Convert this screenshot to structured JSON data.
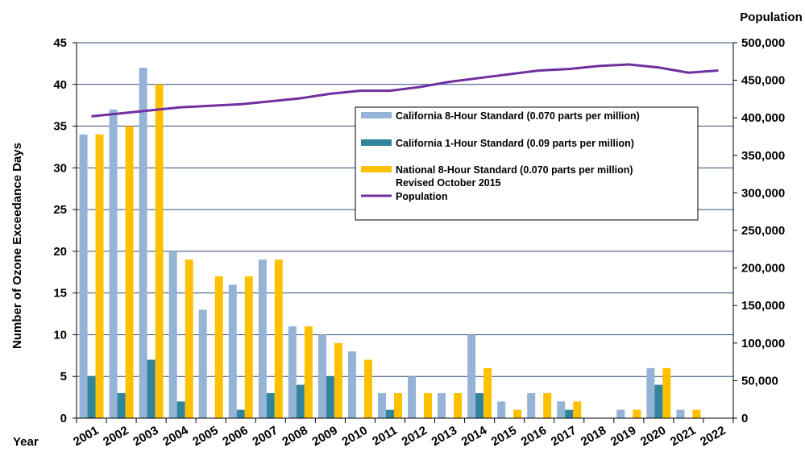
{
  "chart_data": {
    "type": "bar",
    "x_axis_title": "Year",
    "ylabel": "Number of Ozone Exceedance Days",
    "y2label": "Population",
    "ylim": [
      0,
      45
    ],
    "y_ticks": [
      0,
      5,
      10,
      15,
      20,
      25,
      30,
      35,
      40,
      45
    ],
    "y2lim": [
      0,
      500000
    ],
    "y2_ticks": [
      "0",
      "50,000",
      "100,000",
      "150,000",
      "200,000",
      "250,000",
      "300,000",
      "350,000",
      "400,000",
      "450,000",
      "500,000"
    ],
    "grid": "horizontal",
    "legend_placement": "top-right",
    "categories": [
      "2001",
      "2002",
      "2003",
      "2004",
      "2005",
      "2006",
      "2007",
      "2008",
      "2009",
      "2010",
      "2011",
      "2012",
      "2013",
      "2014",
      "2015",
      "2016",
      "2017",
      "2018",
      "2019",
      "2020",
      "2021",
      "2022"
    ],
    "series": [
      {
        "name": "California 8-Hour Standard (0.070 parts per million)",
        "name_line2": "",
        "kind": "bar",
        "color": "#95b3d7",
        "values": [
          34,
          37,
          42,
          20,
          13,
          16,
          19,
          11,
          10,
          8,
          3,
          5,
          3,
          10,
          2,
          3,
          2,
          0,
          1,
          6,
          1,
          0
        ]
      },
      {
        "name": "California 1-Hour Standard (0.09 parts per million)",
        "name_line2": "",
        "kind": "bar",
        "color": "#31849b",
        "values": [
          5,
          3,
          7,
          2,
          0,
          1,
          3,
          4,
          5,
          0,
          1,
          0,
          0,
          3,
          0,
          0,
          1,
          0,
          0,
          4,
          0,
          0
        ]
      },
      {
        "name": "National 8-Hour Standard (0.070 parts per million)",
        "name_line2": "Revised October 2015",
        "kind": "bar",
        "color": "#ffc000",
        "values": [
          34,
          35,
          40,
          19,
          17,
          17,
          19,
          11,
          9,
          7,
          3,
          3,
          3,
          6,
          1,
          3,
          2,
          0,
          1,
          6,
          1,
          0
        ]
      },
      {
        "name": "Population",
        "name_line2": "",
        "kind": "line",
        "axis": "right",
        "color": "#7030a0",
        "values": [
          402000,
          406000,
          410000,
          414000,
          416000,
          418000,
          422000,
          426000,
          432000,
          436000,
          436000,
          441000,
          448000,
          453000,
          458000,
          463000,
          465000,
          469000,
          471000,
          467000,
          460000,
          463000
        ]
      }
    ]
  }
}
